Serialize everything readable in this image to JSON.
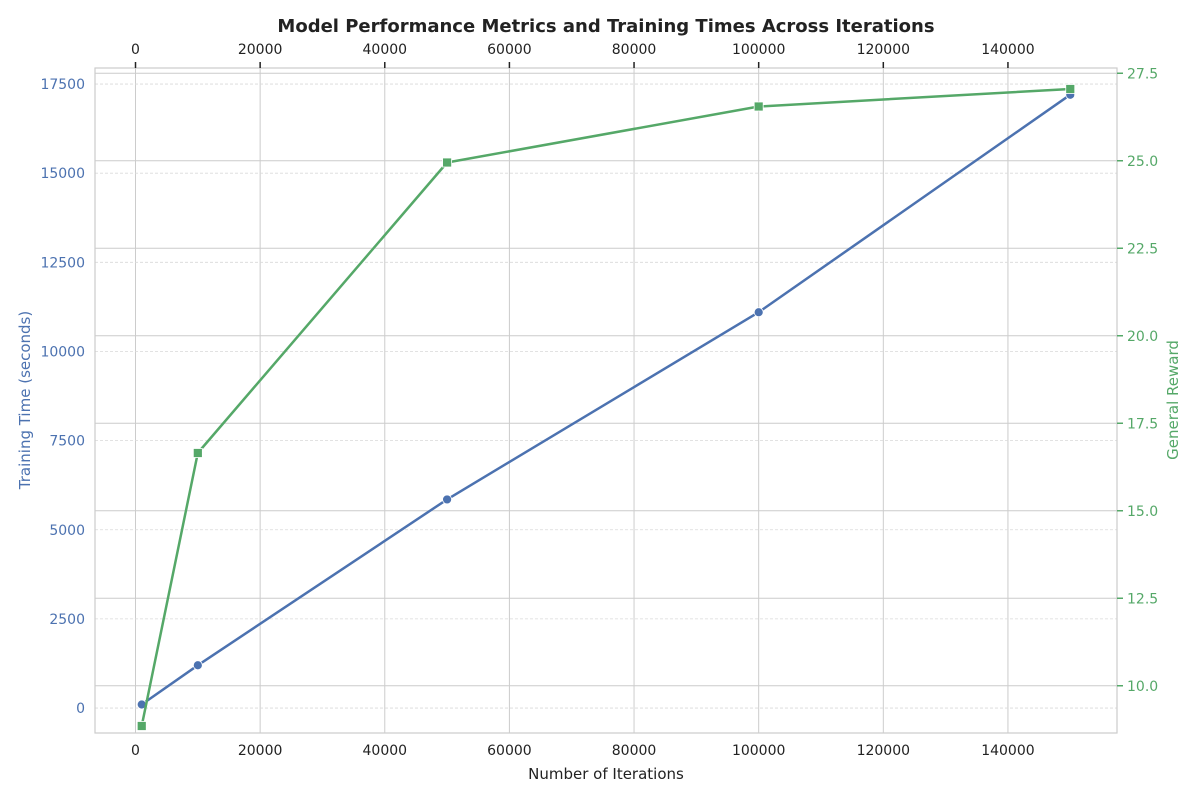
{
  "chart_data": {
    "type": "line",
    "title": "Model Performance Metrics and Training Times Across Iterations",
    "xlabel": "Number of Iterations",
    "ylabel": "Training Time (seconds)",
    "y2label": "General Reward",
    "xlim": [
      -6500,
      157500
    ],
    "ylim": [
      -700,
      17950
    ],
    "y2lim": [
      8.65,
      27.65
    ],
    "x_ticks": [
      0,
      20000,
      40000,
      60000,
      80000,
      100000,
      120000,
      140000
    ],
    "y_ticks": [
      0,
      2500,
      5000,
      7500,
      10000,
      12500,
      15000,
      17500
    ],
    "y2_ticks": [
      10.0,
      12.5,
      15.0,
      17.5,
      20.0,
      22.5,
      25.0,
      27.5
    ],
    "x_tick_labels": [
      "0",
      "20000",
      "40000",
      "60000",
      "80000",
      "100000",
      "120000",
      "140000"
    ],
    "y_tick_labels": [
      "0",
      "2500",
      "5000",
      "7500",
      "10000",
      "12500",
      "15000",
      "17500"
    ],
    "y2_tick_labels": [
      "10.0",
      "12.5",
      "15.0",
      "17.5",
      "20.0",
      "22.5",
      "25.0",
      "27.5"
    ],
    "grid": true,
    "colors": {
      "training_time": "#4c72b0",
      "general_reward": "#55a868",
      "title": "#222222",
      "grid_major": "#cccccc",
      "grid_minor": "#d9d9d9"
    },
    "series": [
      {
        "axis": "left",
        "marker": "circle",
        "x": [
          1000,
          10000,
          50000,
          100000,
          150000
        ],
        "values": [
          100,
          1200,
          5850,
          11100,
          17200
        ]
      },
      {
        "axis": "right",
        "marker": "square",
        "x": [
          1000,
          10000,
          50000,
          100000,
          150000
        ],
        "values": [
          8.85,
          16.65,
          24.95,
          26.55,
          27.05
        ]
      }
    ]
  }
}
